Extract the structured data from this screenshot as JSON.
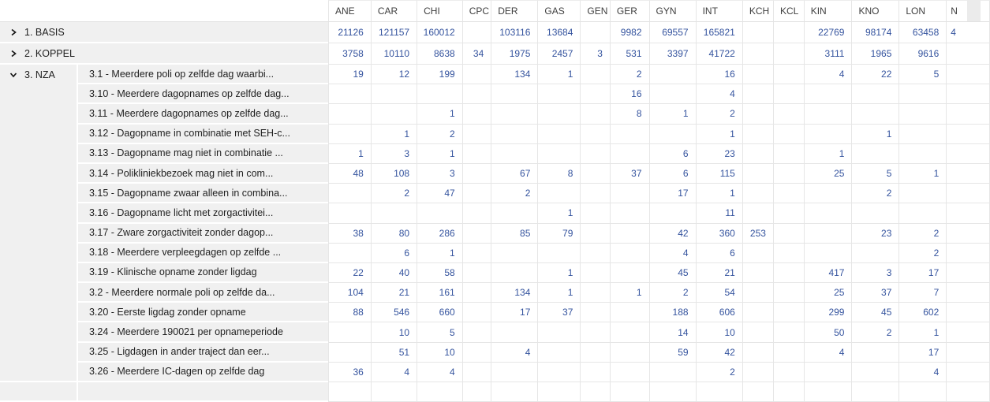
{
  "colors": {
    "value_blue": "#34539e",
    "label_text": "#1f1f1f",
    "header_text": "#404040",
    "grid_line": "#e6e6e6",
    "label_panel_bg": "#f0f0f0"
  },
  "matrix": {
    "corner_label": "",
    "columns": [
      "ANE",
      "CAR",
      "CHI",
      "CPC",
      "DER",
      "GAS",
      "GEN",
      "GER",
      "GYN",
      "INT",
      "KCH",
      "KCL",
      "KIN",
      "KNO",
      "LON",
      "N"
    ],
    "groups": [
      {
        "label": "1. BASIS",
        "state": "collapsed",
        "values": [
          21126,
          121157,
          160012,
          "",
          103116,
          13684,
          "",
          9982,
          69557,
          165821,
          "",
          "",
          22769,
          98174,
          63458,
          "4"
        ]
      },
      {
        "label": "2. KOPPEL",
        "state": "collapsed",
        "values": [
          3758,
          10110,
          8638,
          34,
          1975,
          2457,
          3,
          531,
          3397,
          41722,
          "",
          "",
          3111,
          1965,
          9616,
          ""
        ]
      },
      {
        "label": "3. NZA",
        "state": "expanded",
        "children": [
          {
            "label": "3.1 - Meerdere poli op zelfde dag waarbi...",
            "values": [
              19,
              12,
              199,
              "",
              134,
              1,
              "",
              2,
              "",
              16,
              "",
              "",
              4,
              22,
              5,
              ""
            ]
          },
          {
            "label": "3.10 - Meerdere dagopnames op zelfde dag...",
            "values": [
              "",
              "",
              "",
              "",
              "",
              "",
              "",
              16,
              "",
              4,
              "",
              "",
              "",
              "",
              "",
              ""
            ]
          },
          {
            "label": "3.11 - Meerdere dagopnames op zelfde dag...",
            "values": [
              "",
              "",
              1,
              "",
              "",
              "",
              "",
              8,
              1,
              2,
              "",
              "",
              "",
              "",
              "",
              ""
            ]
          },
          {
            "label": "3.12 - Dagopname in combinatie met SEH-c...",
            "values": [
              "",
              1,
              2,
              "",
              "",
              "",
              "",
              "",
              "",
              1,
              "",
              "",
              "",
              1,
              "",
              ""
            ]
          },
          {
            "label": "3.13 - Dagopname mag niet in combinatie ...",
            "values": [
              1,
              3,
              1,
              "",
              "",
              "",
              "",
              "",
              6,
              23,
              "",
              "",
              1,
              "",
              "",
              ""
            ]
          },
          {
            "label": "3.14 - Polikliniekbezoek mag niet in com...",
            "values": [
              48,
              108,
              3,
              "",
              67,
              8,
              "",
              37,
              6,
              115,
              "",
              "",
              25,
              5,
              1,
              ""
            ]
          },
          {
            "label": "3.15 - Dagopname zwaar alleen in combina...",
            "values": [
              "",
              2,
              47,
              "",
              2,
              "",
              "",
              "",
              17,
              1,
              "",
              "",
              "",
              2,
              "",
              ""
            ]
          },
          {
            "label": "3.16 - Dagopname licht met zorgactivitei...",
            "values": [
              "",
              "",
              "",
              "",
              "",
              1,
              "",
              "",
              "",
              11,
              "",
              "",
              "",
              "",
              "",
              ""
            ]
          },
          {
            "label": "3.17 - Zware zorgactiviteit zonder dagop...",
            "values": [
              38,
              80,
              286,
              "",
              85,
              79,
              "",
              "",
              42,
              360,
              253,
              "",
              "",
              23,
              2,
              ""
            ]
          },
          {
            "label": "3.18 - Meerdere verpleegdagen op zelfde ...",
            "values": [
              "",
              6,
              1,
              "",
              "",
              "",
              "",
              "",
              4,
              6,
              "",
              "",
              "",
              "",
              2,
              ""
            ]
          },
          {
            "label": "3.19 - Klinische opname zonder ligdag",
            "values": [
              22,
              40,
              58,
              "",
              "",
              1,
              "",
              "",
              45,
              21,
              "",
              "",
              417,
              3,
              17,
              ""
            ]
          },
          {
            "label": "3.2 - Meerdere normale poli op zelfde da...",
            "values": [
              104,
              21,
              161,
              "",
              134,
              1,
              "",
              1,
              2,
              54,
              "",
              "",
              25,
              37,
              7,
              ""
            ]
          },
          {
            "label": "3.20 - Eerste ligdag zonder opname",
            "values": [
              88,
              546,
              660,
              "",
              17,
              37,
              "",
              "",
              188,
              606,
              "",
              "",
              299,
              45,
              602,
              ""
            ]
          },
          {
            "label": "3.24 - Meerdere 190021 per opnameperiode",
            "values": [
              "",
              10,
              5,
              "",
              "",
              "",
              "",
              "",
              14,
              10,
              "",
              "",
              50,
              2,
              1,
              ""
            ]
          },
          {
            "label": "3.25 - Ligdagen in ander traject dan eer...",
            "values": [
              "",
              51,
              10,
              "",
              4,
              "",
              "",
              "",
              59,
              42,
              "",
              "",
              4,
              "",
              17,
              ""
            ]
          },
          {
            "label": "3.26 - Meerdere IC-dagen op zelfde dag",
            "values": [
              36,
              4,
              4,
              "",
              "",
              "",
              "",
              "",
              "",
              2,
              "",
              "",
              "",
              "",
              4,
              ""
            ]
          }
        ]
      }
    ]
  }
}
